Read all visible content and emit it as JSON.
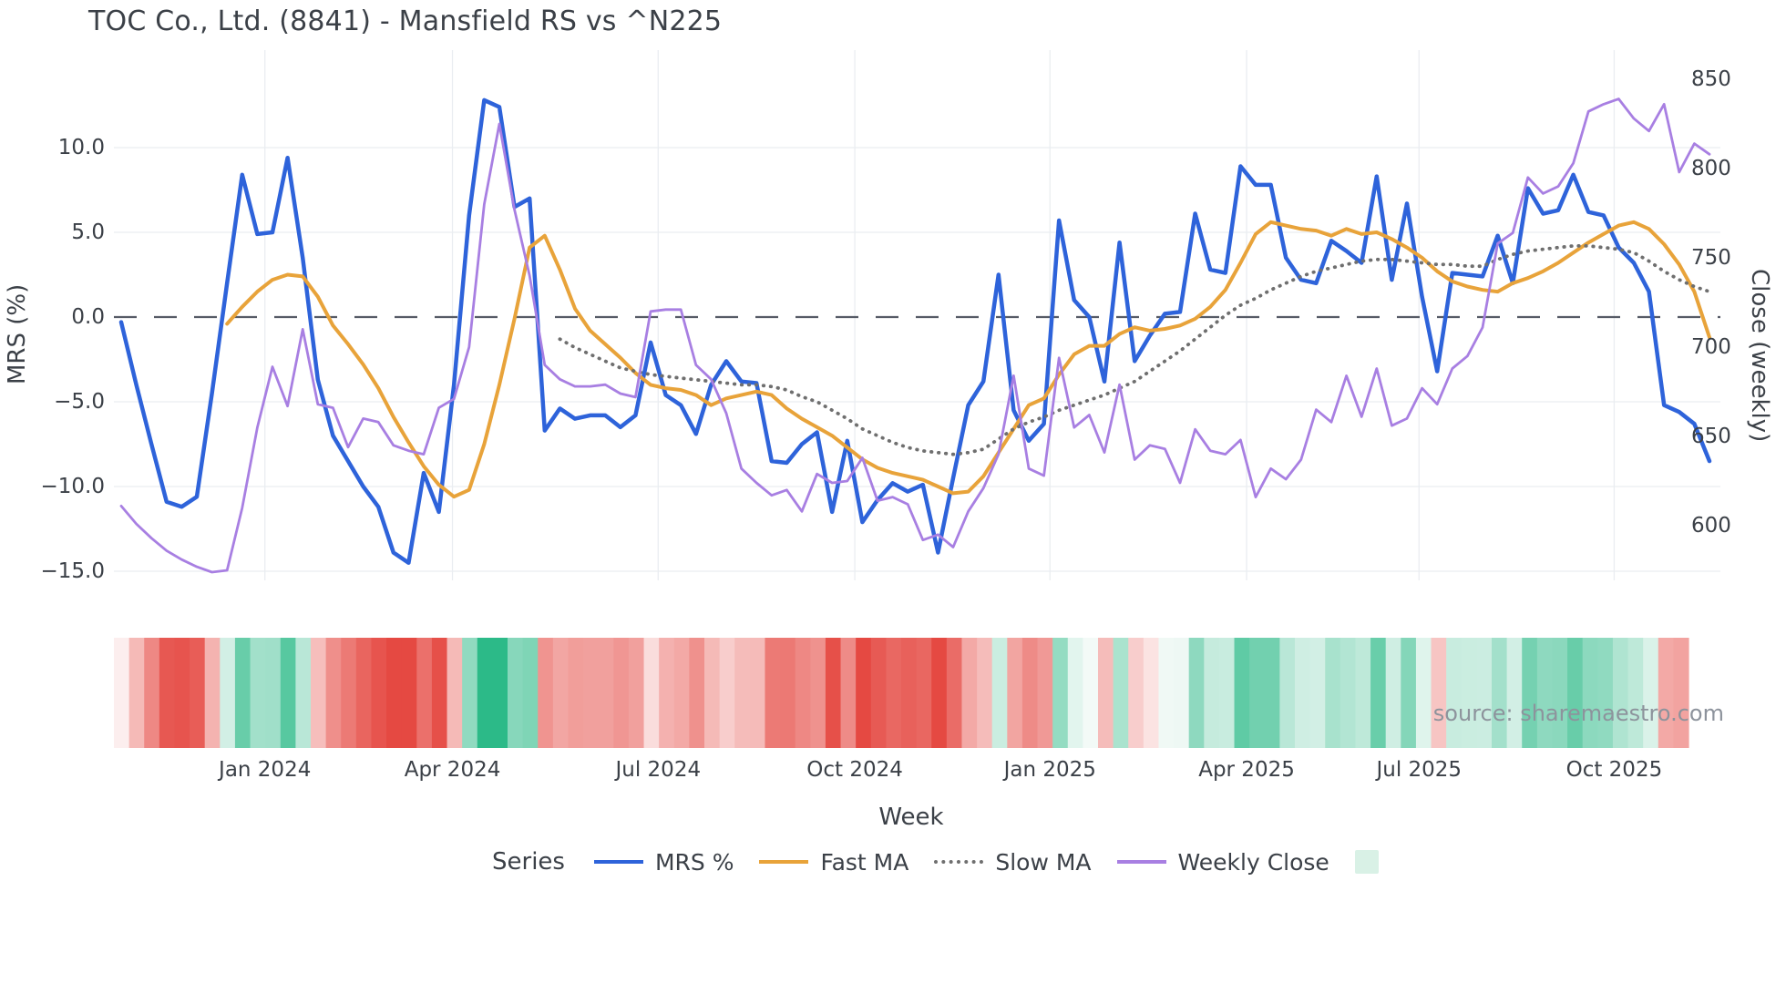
{
  "chart_data": {
    "type": "line",
    "title": "TOC Co., Ltd. (8841) - Mansfield RS vs ^N225",
    "xlabel": "Week",
    "ylabel_left": "MRS (%)",
    "ylabel_right": "Close (weekly)",
    "legend_title": "Series",
    "source": "source: sharemaestro.com",
    "grid": true,
    "legend_position": "bottom",
    "y_left_ticks": [
      "10.0",
      "5.0",
      "0.0",
      "−5.0",
      "−10.0",
      "−15.0"
    ],
    "y_left_values": [
      10,
      5,
      0,
      -5,
      -10,
      -15
    ],
    "y_left_range": [
      -16.5,
      13.8
    ],
    "y_right_ticks": [
      "850",
      "800",
      "750",
      "700",
      "650",
      "600"
    ],
    "y_right_values": [
      850,
      800,
      750,
      700,
      650,
      600
    ],
    "y_right_range": [
      590,
      855
    ],
    "x_tick_labels": [
      "Jan 2024",
      "Apr 2024",
      "Jul 2024",
      "Oct 2024",
      "Jan 2025",
      "Apr 2025",
      "Jul 2025",
      "Oct 2025"
    ],
    "x_tick_weeks": [
      9.5,
      21.9,
      35.5,
      48.5,
      61.4,
      74.4,
      85.8,
      98.7
    ],
    "weeks": 106,
    "zero_line": {
      "value": 0,
      "color": "#565b66"
    },
    "colors": {
      "mrs": "#2e63da",
      "fast_ma": "#e8a33a",
      "slow_ma": "#6f6f6f",
      "weekly_close": "#a87fe2",
      "heatmap_green": "#2cba88",
      "heatmap_red": "#e54942",
      "gridline": "#eaedf1",
      "legend_extra_swatch": "#d9f1e6"
    },
    "series": [
      {
        "name": "MRS %",
        "axis": "left",
        "style": "solid",
        "width": 4.5,
        "color_key": "mrs",
        "values": [
          -0.3,
          -4.0,
          -7.5,
          -10.9,
          -11.2,
          -10.6,
          -4.5,
          2.0,
          8.4,
          4.9,
          5.0,
          9.4,
          3.5,
          -3.7,
          -7.0,
          -8.5,
          -10.0,
          -11.2,
          -13.9,
          -14.5,
          -9.2,
          -11.5,
          -4.0,
          6.0,
          12.8,
          12.4,
          6.5,
          7.0,
          -6.7,
          -5.4,
          -6.0,
          -5.8,
          -5.8,
          -6.5,
          -5.8,
          -1.5,
          -4.6,
          -5.2,
          -6.9,
          -4.0,
          -2.6,
          -3.8,
          -3.9,
          -8.5,
          -8.6,
          -7.5,
          -6.8,
          -11.5,
          -7.3,
          -12.1,
          -10.8,
          -9.8,
          -10.3,
          -9.9,
          -13.9,
          -9.5,
          -5.2,
          -3.8,
          2.5,
          -5.5,
          -7.3,
          -6.3,
          5.7,
          1.0,
          0.0,
          -3.8,
          4.4,
          -2.6,
          -1.1,
          0.2,
          0.3,
          6.1,
          2.8,
          2.6,
          8.9,
          7.8,
          7.8,
          3.5,
          2.2,
          2.0,
          4.5,
          3.9,
          3.2,
          8.3,
          2.2,
          6.7,
          1.2,
          -3.2,
          2.6,
          2.5,
          2.4,
          4.8,
          2.0,
          7.6,
          6.1,
          6.3,
          8.4,
          6.2,
          6.0,
          4.1,
          3.2,
          1.5,
          -5.2,
          -5.6,
          -6.3,
          -8.5
        ]
      },
      {
        "name": "Fast MA",
        "axis": "left",
        "style": "solid",
        "width": 4,
        "color_key": "fast_ma",
        "values": [
          null,
          null,
          null,
          null,
          null,
          null,
          null,
          -0.4,
          0.6,
          1.5,
          2.2,
          2.5,
          2.4,
          1.2,
          -0.5,
          -1.6,
          -2.8,
          -4.2,
          -5.9,
          -7.4,
          -8.8,
          -9.9,
          -10.6,
          -10.2,
          -7.5,
          -4.0,
          -0.1,
          4.1,
          4.8,
          2.8,
          0.5,
          -0.8,
          -1.6,
          -2.4,
          -3.3,
          -4.0,
          -4.2,
          -4.3,
          -4.6,
          -5.2,
          -4.8,
          -4.6,
          -4.4,
          -4.6,
          -5.4,
          -6.0,
          -6.5,
          -7.0,
          -7.7,
          -8.4,
          -8.9,
          -9.2,
          -9.4,
          -9.6,
          -10.0,
          -10.4,
          -10.3,
          -9.4,
          -8.0,
          -6.6,
          -5.2,
          -4.8,
          -3.4,
          -2.2,
          -1.7,
          -1.7,
          -1.0,
          -0.6,
          -0.8,
          -0.7,
          -0.5,
          -0.1,
          0.6,
          1.6,
          3.2,
          4.9,
          5.6,
          5.4,
          5.2,
          5.1,
          4.8,
          5.2,
          4.9,
          5.0,
          4.6,
          4.1,
          3.5,
          2.7,
          2.1,
          1.8,
          1.6,
          1.5,
          2.0,
          2.3,
          2.7,
          3.2,
          3.8,
          4.4,
          4.9,
          5.4,
          5.6,
          5.2,
          4.3,
          3.1,
          1.5,
          -1.2
        ]
      },
      {
        "name": "Slow MA",
        "axis": "left",
        "style": "dotted",
        "width": 3.8,
        "color_key": "slow_ma",
        "values": [
          null,
          null,
          null,
          null,
          null,
          null,
          null,
          null,
          null,
          null,
          null,
          null,
          null,
          null,
          null,
          null,
          null,
          null,
          null,
          null,
          null,
          null,
          null,
          null,
          null,
          null,
          null,
          null,
          null,
          -1.3,
          -1.8,
          -2.2,
          -2.6,
          -3.0,
          -3.2,
          -3.4,
          -3.5,
          -3.6,
          -3.7,
          -3.8,
          -3.9,
          -4.0,
          -4.0,
          -4.1,
          -4.3,
          -4.7,
          -5.0,
          -5.5,
          -6.0,
          -6.6,
          -7.0,
          -7.4,
          -7.7,
          -7.9,
          -8.0,
          -8.1,
          -8.0,
          -7.8,
          -7.2,
          -6.6,
          -6.2,
          -5.9,
          -5.5,
          -5.2,
          -4.9,
          -4.6,
          -4.2,
          -3.8,
          -3.2,
          -2.6,
          -2.0,
          -1.3,
          -0.6,
          0.1,
          0.7,
          1.1,
          1.6,
          2.0,
          2.4,
          2.7,
          2.9,
          3.1,
          3.3,
          3.4,
          3.4,
          3.3,
          3.2,
          3.1,
          3.1,
          3.0,
          3.0,
          3.4,
          3.7,
          3.9,
          4.0,
          4.1,
          4.2,
          4.2,
          4.1,
          4.0,
          3.8,
          3.3,
          2.7,
          2.2,
          1.8,
          1.5
        ]
      },
      {
        "name": "Weekly Close",
        "axis": "right",
        "style": "solid",
        "width": 2.8,
        "color_key": "weekly_close",
        "values": [
          611,
          601,
          593,
          586,
          581,
          577,
          574,
          575,
          610,
          655,
          689,
          667,
          710,
          668,
          666,
          644,
          660,
          658,
          645,
          642,
          640,
          666,
          671,
          700,
          780,
          825,
          777,
          740,
          690,
          682,
          678,
          678,
          679,
          674,
          672,
          720,
          721,
          721,
          690,
          682,
          663,
          632,
          624,
          617,
          620,
          608,
          629,
          624,
          625,
          638,
          614,
          616,
          612,
          592,
          595,
          588,
          608,
          621,
          640,
          684,
          632,
          628,
          694,
          655,
          662,
          641,
          679,
          637,
          645,
          643,
          624,
          654,
          642,
          640,
          648,
          616,
          632,
          626,
          637,
          665,
          658,
          684,
          661,
          688,
          656,
          660,
          677,
          668,
          688,
          695,
          711,
          758,
          764,
          795,
          786,
          790,
          803,
          832,
          836,
          839,
          828,
          821,
          836,
          798,
          814,
          808
        ]
      }
    ],
    "heatmap": {
      "description": "weekly MRS intensity strip, red negative / green positive",
      "cells": 104,
      "max_abs_value": 12
    }
  }
}
